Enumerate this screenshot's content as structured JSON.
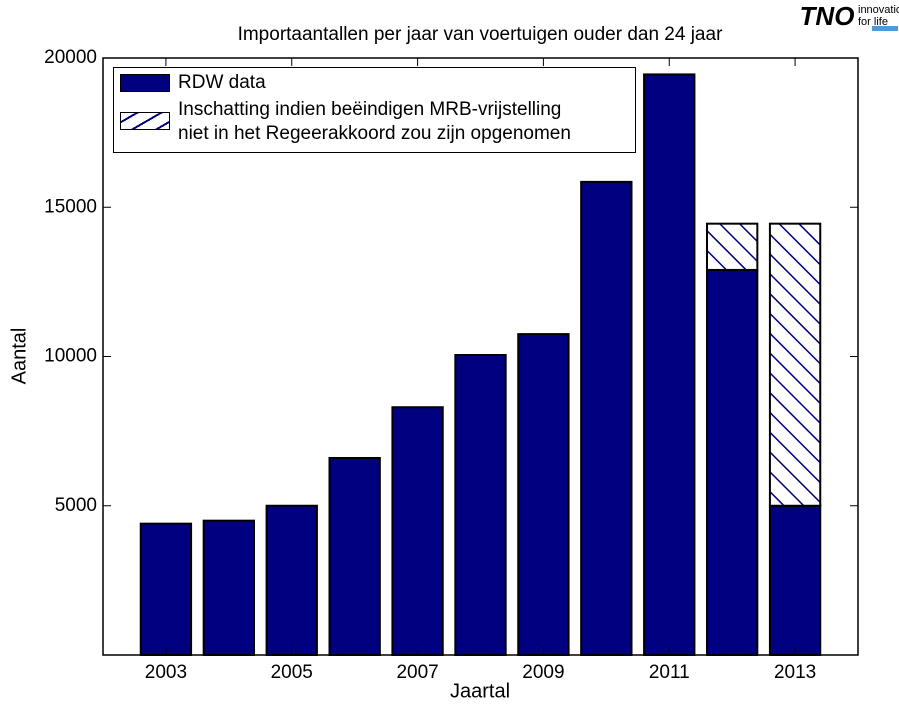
{
  "chart_data": {
    "type": "bar",
    "stacked": true,
    "title": "Importaantallen per jaar van voertuigen ouder dan 24 jaar",
    "x_label": "Jaartal",
    "y_label": "Aantal",
    "x": [
      2003,
      2004,
      2005,
      2006,
      2007,
      2008,
      2009,
      2010,
      2011,
      2012,
      2013
    ],
    "series": [
      {
        "name": "RDW data",
        "color": "#000080",
        "hatch": false,
        "values": [
          4400,
          4500,
          5000,
          6600,
          8300,
          10050,
          10750,
          15850,
          19450,
          12900,
          5000
        ]
      },
      {
        "name": "Inschatting indien beëindigen MRB-vrijstelling\nniet in het Regeerakkoord zou zijn opgenomen",
        "color": "#000080",
        "hatch": true,
        "values": [
          null,
          null,
          null,
          null,
          null,
          null,
          null,
          null,
          null,
          1550,
          9450
        ]
      }
    ],
    "xlim": [
      2002,
      2014
    ],
    "xticks": [
      2003,
      2005,
      2007,
      2009,
      2011,
      2013
    ],
    "ylim": [
      0,
      20000
    ],
    "yticks": [
      5000,
      10000,
      15000,
      20000
    ],
    "grid": false,
    "legend_position": "upper-left"
  },
  "logo": {
    "text": "TNO",
    "tagline_1": "innovation",
    "tagline_2": "for life"
  }
}
